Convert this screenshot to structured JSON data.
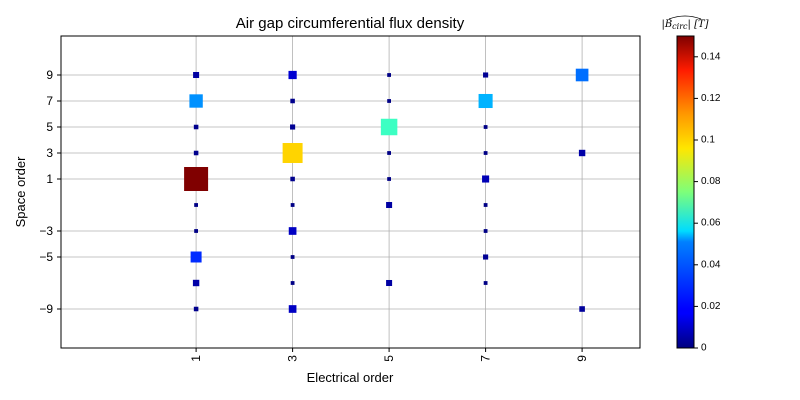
{
  "chart_data": {
    "type": "scatter",
    "title": "Air gap circumferential flux density",
    "xlabel": "Electrical order",
    "ylabel": "Space order",
    "xlim": [
      -1.8,
      10.2
    ],
    "ylim": [
      -12,
      12
    ],
    "xticks": [
      1,
      3,
      5,
      7,
      9
    ],
    "xtick_labels": [
      "1",
      "3",
      "5",
      "7",
      "9"
    ],
    "yticks": [
      -9,
      -5,
      -3,
      1,
      3,
      5,
      7,
      9
    ],
    "ytick_labels": [
      "−9",
      "−5",
      "−3",
      "1",
      "3",
      "5",
      "7",
      "9"
    ],
    "xtick_rotation": 90,
    "grid": true,
    "marker": "square",
    "colormap": "jet",
    "colorbar": {
      "label": "|B̂circ| [T]",
      "label_main": "|B",
      "label_sub": "circ",
      "label_unit": "| [T]",
      "vmin": 0,
      "vmax": 0.15,
      "ticks": [
        0,
        0.02,
        0.04,
        0.06,
        0.08,
        0.1,
        0.12,
        0.14
      ],
      "tick_labels": [
        "0",
        "0.02",
        "0.04",
        "0.06",
        "0.08",
        "0.1",
        "0.12",
        "0.14"
      ]
    },
    "points": [
      {
        "x": 1,
        "y": 1,
        "value": 0.15
      },
      {
        "x": 1,
        "y": 7,
        "value": 0.04
      },
      {
        "x": 1,
        "y": -5,
        "value": 0.025
      },
      {
        "x": 1,
        "y": 9,
        "value": 0.005
      },
      {
        "x": 1,
        "y": 5,
        "value": 0.002
      },
      {
        "x": 1,
        "y": 3,
        "value": 0.002
      },
      {
        "x": 1,
        "y": -1,
        "value": 0.001
      },
      {
        "x": 1,
        "y": -3,
        "value": 0.001
      },
      {
        "x": 1,
        "y": -7,
        "value": 0.006
      },
      {
        "x": 1,
        "y": -9,
        "value": 0.002
      },
      {
        "x": 3,
        "y": 3,
        "value": 0.1
      },
      {
        "x": 3,
        "y": 9,
        "value": 0.012
      },
      {
        "x": 3,
        "y": -3,
        "value": 0.01
      },
      {
        "x": 3,
        "y": -9,
        "value": 0.01
      },
      {
        "x": 3,
        "y": 7,
        "value": 0.002
      },
      {
        "x": 3,
        "y": 5,
        "value": 0.003
      },
      {
        "x": 3,
        "y": 1,
        "value": 0.002
      },
      {
        "x": 3,
        "y": -1,
        "value": 0.001
      },
      {
        "x": 3,
        "y": -5,
        "value": 0.001
      },
      {
        "x": 3,
        "y": -7,
        "value": 0.001
      },
      {
        "x": 5,
        "y": 5,
        "value": 0.065
      },
      {
        "x": 5,
        "y": -1,
        "value": 0.005
      },
      {
        "x": 5,
        "y": -7,
        "value": 0.005
      },
      {
        "x": 5,
        "y": 9,
        "value": 0.001
      },
      {
        "x": 5,
        "y": 7,
        "value": 0.001
      },
      {
        "x": 5,
        "y": 3,
        "value": 0.001
      },
      {
        "x": 5,
        "y": 1,
        "value": 0.001
      },
      {
        "x": 7,
        "y": 7,
        "value": 0.045
      },
      {
        "x": 7,
        "y": 1,
        "value": 0.008
      },
      {
        "x": 7,
        "y": 9,
        "value": 0.003
      },
      {
        "x": 7,
        "y": -5,
        "value": 0.003
      },
      {
        "x": 7,
        "y": 5,
        "value": 0.001
      },
      {
        "x": 7,
        "y": 3,
        "value": 0.001
      },
      {
        "x": 7,
        "y": -1,
        "value": 0.001
      },
      {
        "x": 7,
        "y": -3,
        "value": 0.001
      },
      {
        "x": 7,
        "y": -7,
        "value": 0.001
      },
      {
        "x": 9,
        "y": 9,
        "value": 0.035
      },
      {
        "x": 9,
        "y": 3,
        "value": 0.006
      },
      {
        "x": 9,
        "y": -9,
        "value": 0.004
      }
    ]
  }
}
